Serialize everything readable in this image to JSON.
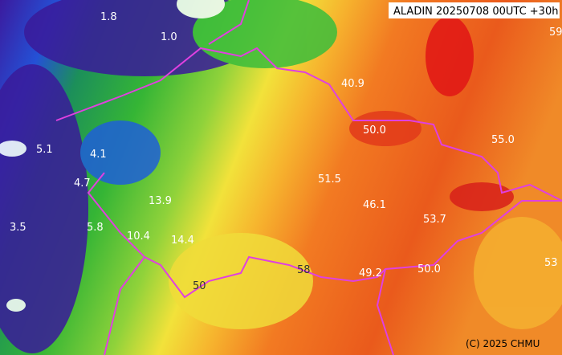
{
  "header": {
    "title": "ALADIN 20250708 00UTC +30h"
  },
  "credit": "(C) 2025 CHMU",
  "contour_labels": [
    "1.8",
    "1.0",
    "5.1",
    "4.1",
    "4.7",
    "3.5",
    "5.8",
    "13.9",
    "10.4",
    "14.4",
    "40.9",
    "50.0",
    "55.0",
    "51.5",
    "46.1",
    "53.7",
    "49.2",
    "50.0",
    "53",
    "59",
    "50",
    "58"
  ]
}
